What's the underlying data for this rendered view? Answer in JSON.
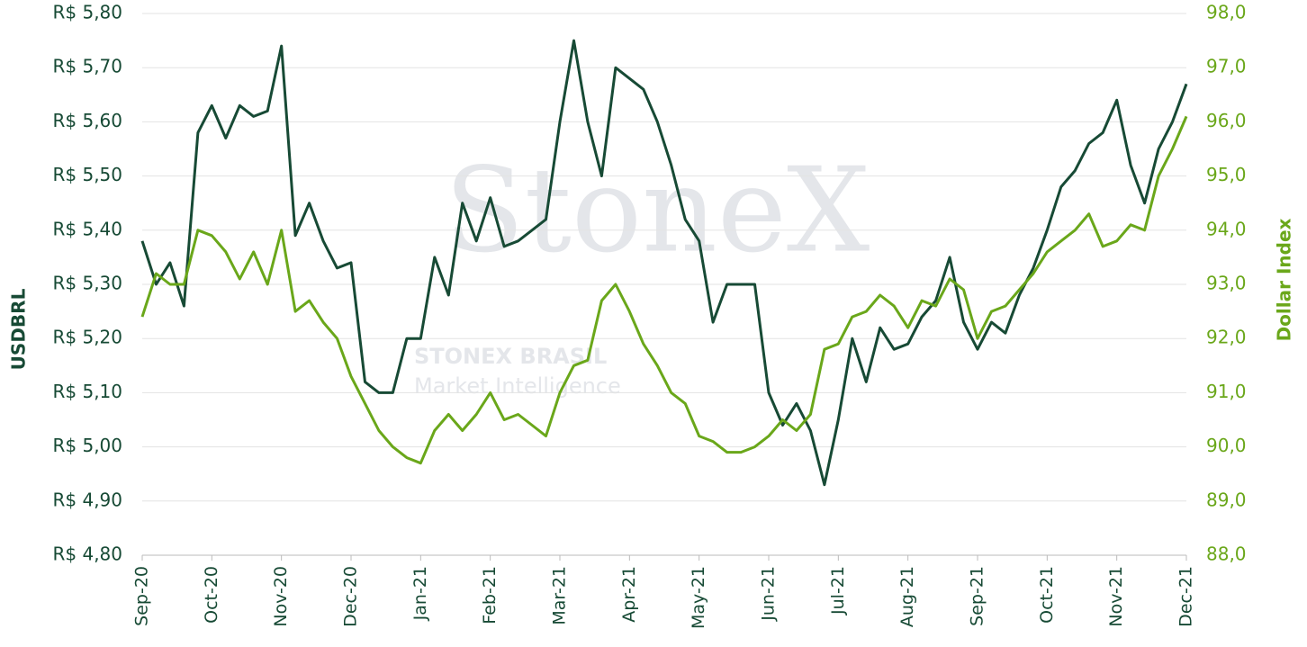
{
  "chart_data": {
    "type": "line",
    "watermark": [
      "StoneX",
      "STONEX BRASIL",
      "Market Intelligence"
    ],
    "ylabel": "USDBRL",
    "y2label": "Dollar Index",
    "grid": true,
    "x": [
      0,
      0.2,
      0.4,
      0.6,
      0.8,
      1,
      1.2,
      1.4,
      1.6,
      1.8,
      2,
      2.2,
      2.4,
      2.6,
      2.8,
      3,
      3.2,
      3.4,
      3.6,
      3.8,
      4,
      4.2,
      4.4,
      4.6,
      4.8,
      5,
      5.2,
      5.4,
      5.6,
      5.8,
      6,
      6.2,
      6.4,
      6.6,
      6.8,
      7,
      7.2,
      7.4,
      7.6,
      7.8,
      8,
      8.2,
      8.4,
      8.6,
      8.8,
      9,
      9.2,
      9.4,
      9.6,
      9.8,
      10,
      10.2,
      10.4,
      10.6,
      10.8,
      11,
      11.2,
      11.4,
      11.6,
      11.8,
      12,
      12.2,
      12.4,
      12.6,
      12.8,
      13,
      13.2,
      13.4,
      13.6,
      13.8,
      14,
      14.2,
      14.4,
      14.6,
      14.8,
      15
    ],
    "xlim": [
      0,
      15
    ],
    "xticks": [
      {
        "value": 0,
        "label": "Sep-20"
      },
      {
        "value": 1,
        "label": "Oct-20"
      },
      {
        "value": 2,
        "label": "Nov-20"
      },
      {
        "value": 3,
        "label": "Dec-20"
      },
      {
        "value": 4,
        "label": "Jan-21"
      },
      {
        "value": 5,
        "label": "Feb-21"
      },
      {
        "value": 6,
        "label": "Mar-21"
      },
      {
        "value": 7,
        "label": "Apr-21"
      },
      {
        "value": 8,
        "label": "May-21"
      },
      {
        "value": 9,
        "label": "Jun-21"
      },
      {
        "value": 10,
        "label": "Jul-21"
      },
      {
        "value": 11,
        "label": "Aug-21"
      },
      {
        "value": 12,
        "label": "Sep-21"
      },
      {
        "value": 13,
        "label": "Oct-21"
      },
      {
        "value": 14,
        "label": "Nov-21"
      },
      {
        "value": 15,
        "label": "Dec-21"
      }
    ],
    "ylim": [
      4.8,
      5.8
    ],
    "yticks": [
      {
        "value": 4.8,
        "label": "R$ 4,80"
      },
      {
        "value": 4.9,
        "label": "R$ 4,90"
      },
      {
        "value": 5.0,
        "label": "R$ 5,00"
      },
      {
        "value": 5.1,
        "label": "R$ 5,10"
      },
      {
        "value": 5.2,
        "label": "R$ 5,20"
      },
      {
        "value": 5.3,
        "label": "R$ 5,30"
      },
      {
        "value": 5.4,
        "label": "R$ 5,40"
      },
      {
        "value": 5.5,
        "label": "R$ 5,50"
      },
      {
        "value": 5.6,
        "label": "R$ 5,60"
      },
      {
        "value": 5.7,
        "label": "R$ 5,70"
      },
      {
        "value": 5.8,
        "label": "R$ 5,80"
      }
    ],
    "y2lim": [
      88,
      98
    ],
    "y2ticks": [
      {
        "value": 88,
        "label": "88,0"
      },
      {
        "value": 89,
        "label": "89,0"
      },
      {
        "value": 90,
        "label": "90,0"
      },
      {
        "value": 91,
        "label": "91,0"
      },
      {
        "value": 92,
        "label": "92,0"
      },
      {
        "value": 93,
        "label": "93,0"
      },
      {
        "value": 94,
        "label": "94,0"
      },
      {
        "value": 95,
        "label": "95,0"
      },
      {
        "value": 96,
        "label": "96,0"
      },
      {
        "value": 97,
        "label": "97,0"
      },
      {
        "value": 98,
        "label": "98,0"
      }
    ],
    "series": [
      {
        "name": "USDBRL",
        "color": "#174a35",
        "axis": "y",
        "values": [
          5.38,
          5.3,
          5.34,
          5.26,
          5.58,
          5.63,
          5.57,
          5.63,
          5.61,
          5.62,
          5.74,
          5.39,
          5.45,
          5.38,
          5.33,
          5.34,
          5.12,
          5.1,
          5.1,
          5.2,
          5.2,
          5.35,
          5.28,
          5.45,
          5.38,
          5.46,
          5.37,
          5.38,
          5.4,
          5.42,
          5.6,
          5.75,
          5.6,
          5.5,
          5.7,
          5.68,
          5.66,
          5.6,
          5.52,
          5.42,
          5.38,
          5.23,
          5.3,
          5.3,
          5.3,
          5.1,
          5.04,
          5.08,
          5.03,
          4.93,
          5.05,
          5.2,
          5.12,
          5.22,
          5.18,
          5.19,
          5.24,
          5.27,
          5.35,
          5.23,
          5.18,
          5.23,
          5.21,
          5.28,
          5.33,
          5.4,
          5.48,
          5.51,
          5.56,
          5.58,
          5.64,
          5.52,
          5.45,
          5.55,
          5.6,
          5.67
        ]
      },
      {
        "name": "Dollar Index",
        "color": "#6aa71a",
        "axis": "y2",
        "values": [
          92.4,
          93.2,
          93.0,
          93.0,
          94.0,
          93.9,
          93.6,
          93.1,
          93.6,
          93.0,
          94.0,
          92.5,
          92.7,
          92.3,
          92.0,
          91.3,
          90.8,
          90.3,
          90.0,
          89.8,
          89.7,
          90.3,
          90.6,
          90.3,
          90.6,
          91.0,
          90.5,
          90.6,
          90.4,
          90.2,
          91.0,
          91.5,
          91.6,
          92.7,
          93.0,
          92.5,
          91.9,
          91.5,
          91.0,
          90.8,
          90.2,
          90.1,
          89.9,
          89.9,
          90.0,
          90.2,
          90.5,
          90.3,
          90.6,
          91.8,
          91.9,
          92.4,
          92.5,
          92.8,
          92.6,
          92.2,
          92.7,
          92.6,
          93.1,
          92.9,
          92.0,
          92.5,
          92.6,
          92.9,
          93.2,
          93.6,
          93.8,
          94.0,
          94.3,
          93.7,
          93.8,
          94.1,
          94.0,
          95.0,
          95.5,
          96.1
        ]
      }
    ]
  }
}
